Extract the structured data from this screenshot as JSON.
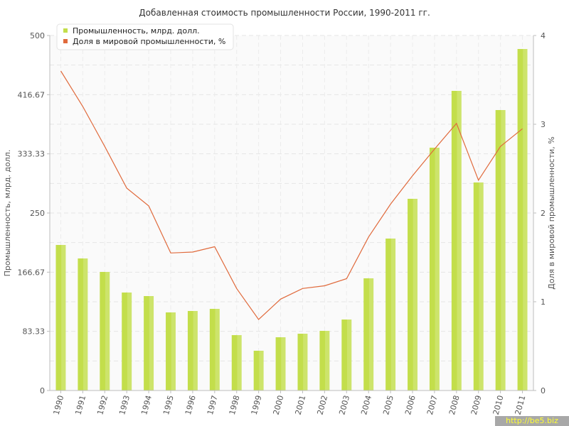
{
  "chart_data": {
    "type": "bar+line",
    "title": "Добавленная стоимость промышленности России, 1990-2011 гг.",
    "categories": [
      "1990",
      "1991",
      "1992",
      "1993",
      "1994",
      "1995",
      "1996",
      "1997",
      "1998",
      "1999",
      "2000",
      "2001",
      "2002",
      "2003",
      "2004",
      "2005",
      "2006",
      "2007",
      "2008",
      "2009",
      "2010",
      "2011"
    ],
    "series": [
      {
        "name": "Промышленность, млрд. долл.",
        "type": "bar",
        "axis": "left",
        "color": "#c3de4b",
        "values": [
          205,
          186,
          167,
          138,
          133,
          110,
          112,
          115,
          78,
          56,
          75,
          80,
          84,
          100,
          158,
          214,
          270,
          342,
          422,
          293,
          395,
          481
        ]
      },
      {
        "name": "Доля в мировой промышленности, %",
        "type": "line",
        "axis": "right",
        "color": "#e06a3c",
        "values": [
          3.6,
          3.2,
          2.75,
          2.28,
          2.08,
          1.55,
          1.56,
          1.62,
          1.15,
          0.8,
          1.03,
          1.15,
          1.18,
          1.26,
          1.73,
          2.1,
          2.42,
          2.72,
          3.01,
          2.37,
          2.75,
          2.95
        ]
      }
    ],
    "ylabel_left": "Промышленность, млрд. долл.",
    "ylabel_right": "Доля в мировой промышленности, %",
    "ylim_left": [
      0,
      500
    ],
    "ylim_right": [
      0,
      4
    ],
    "yticks_left": [
      "0",
      "83.33",
      "166.67",
      "250",
      "333.33",
      "416.67",
      "500"
    ],
    "yticks_right": [
      "0",
      "1",
      "2",
      "3",
      "4"
    ],
    "grid": true,
    "legend_position": "top-left"
  },
  "watermark": "http://be5.biz"
}
